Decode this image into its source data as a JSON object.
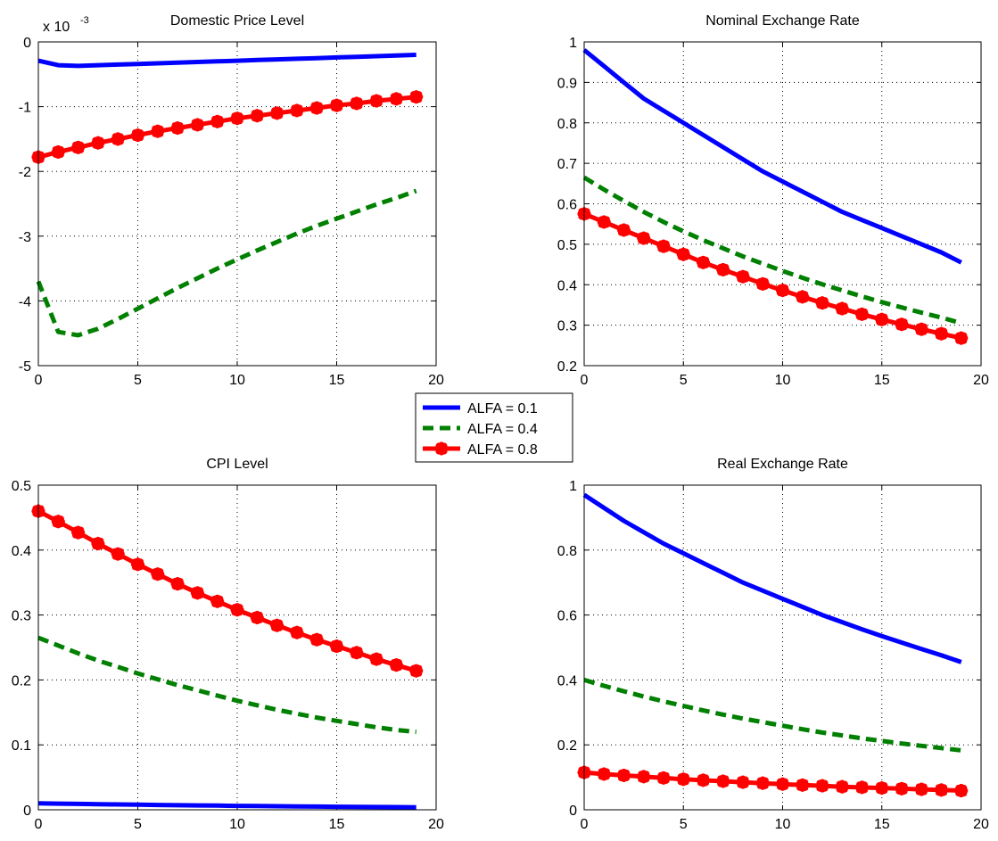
{
  "legend": {
    "placement": "center",
    "entries": [
      {
        "label": "ALFA = 0.1",
        "color": "#0000ff",
        "style": "solid"
      },
      {
        "label": "ALFA = 0.4",
        "color": "#008000",
        "style": "dashed"
      },
      {
        "label": "ALFA = 0.8",
        "color": "#ff0000",
        "style": "solid-marker"
      }
    ]
  },
  "chart_data": [
    {
      "type": "line",
      "title": "Domestic Price Level",
      "xlabel": "",
      "ylabel": "",
      "exponent_label": "x 10",
      "exponent_power": "-3",
      "xlim": [
        0,
        20
      ],
      "ylim": [
        -5,
        0
      ],
      "xticks": [
        0,
        5,
        10,
        15,
        20
      ],
      "yticks": [
        -5,
        -4,
        -3,
        -2,
        -1,
        0
      ],
      "grid": true,
      "x": [
        0,
        1,
        2,
        3,
        4,
        5,
        6,
        7,
        8,
        9,
        10,
        11,
        12,
        13,
        14,
        15,
        16,
        17,
        18,
        19
      ],
      "series": [
        {
          "name": "ALFA = 0.1",
          "values": [
            -0.29,
            -0.36,
            -0.37,
            -0.36,
            -0.35,
            -0.34,
            -0.33,
            -0.32,
            -0.31,
            -0.3,
            -0.29,
            -0.28,
            -0.27,
            -0.26,
            -0.25,
            -0.24,
            -0.23,
            -0.22,
            -0.21,
            -0.2
          ]
        },
        {
          "name": "ALFA = 0.4",
          "values": [
            -3.7,
            -4.48,
            -4.53,
            -4.43,
            -4.28,
            -4.12,
            -3.96,
            -3.8,
            -3.65,
            -3.5,
            -3.36,
            -3.22,
            -3.09,
            -2.96,
            -2.84,
            -2.73,
            -2.62,
            -2.51,
            -2.41,
            -2.3
          ]
        },
        {
          "name": "ALFA = 0.8",
          "values": [
            -1.78,
            -1.7,
            -1.63,
            -1.56,
            -1.5,
            -1.44,
            -1.38,
            -1.33,
            -1.28,
            -1.23,
            -1.18,
            -1.14,
            -1.1,
            -1.06,
            -1.02,
            -0.98,
            -0.95,
            -0.91,
            -0.88,
            -0.85
          ]
        }
      ]
    },
    {
      "type": "line",
      "title": "Nominal Exchange Rate",
      "xlabel": "",
      "ylabel": "",
      "xlim": [
        0,
        20
      ],
      "ylim": [
        0.2,
        1
      ],
      "xticks": [
        0,
        5,
        10,
        15,
        20
      ],
      "yticks": [
        0.2,
        0.3,
        0.4,
        0.5,
        0.6,
        0.7,
        0.8,
        0.9,
        1
      ],
      "grid": true,
      "x": [
        0,
        1,
        2,
        3,
        4,
        5,
        6,
        7,
        8,
        9,
        10,
        11,
        12,
        13,
        14,
        15,
        16,
        17,
        18,
        19
      ],
      "series": [
        {
          "name": "ALFA = 0.1",
          "values": [
            0.98,
            0.94,
            0.9,
            0.86,
            0.83,
            0.8,
            0.77,
            0.74,
            0.71,
            0.68,
            0.655,
            0.63,
            0.605,
            0.58,
            0.56,
            0.54,
            0.52,
            0.5,
            0.48,
            0.455
          ]
        },
        {
          "name": "ALFA = 0.4",
          "values": [
            0.665,
            0.635,
            0.607,
            0.58,
            0.555,
            0.532,
            0.51,
            0.49,
            0.47,
            0.452,
            0.434,
            0.417,
            0.401,
            0.386,
            0.371,
            0.357,
            0.344,
            0.331,
            0.319,
            0.305
          ]
        },
        {
          "name": "ALFA = 0.8",
          "values": [
            0.575,
            0.555,
            0.535,
            0.515,
            0.495,
            0.475,
            0.455,
            0.437,
            0.42,
            0.402,
            0.386,
            0.37,
            0.355,
            0.341,
            0.327,
            0.314,
            0.302,
            0.29,
            0.279,
            0.268
          ]
        }
      ]
    },
    {
      "type": "line",
      "title": "CPI Level",
      "xlabel": "",
      "ylabel": "",
      "xlim": [
        0,
        20
      ],
      "ylim": [
        0,
        0.5
      ],
      "xticks": [
        0,
        5,
        10,
        15,
        20
      ],
      "yticks": [
        0,
        0.1,
        0.2,
        0.3,
        0.4,
        0.5
      ],
      "grid": true,
      "x": [
        0,
        1,
        2,
        3,
        4,
        5,
        6,
        7,
        8,
        9,
        10,
        11,
        12,
        13,
        14,
        15,
        16,
        17,
        18,
        19
      ],
      "series": [
        {
          "name": "ALFA = 0.1",
          "values": [
            0.01,
            0.0095,
            0.009,
            0.0086,
            0.0082,
            0.0078,
            0.0074,
            0.007,
            0.0067,
            0.0064,
            0.0061,
            0.0058,
            0.0055,
            0.0052,
            0.005,
            0.0047,
            0.0045,
            0.0043,
            0.0041,
            0.0039
          ]
        },
        {
          "name": "ALFA = 0.4",
          "values": [
            0.265,
            0.253,
            0.241,
            0.23,
            0.22,
            0.21,
            0.201,
            0.192,
            0.184,
            0.176,
            0.168,
            0.161,
            0.154,
            0.148,
            0.142,
            0.137,
            0.132,
            0.127,
            0.123,
            0.12
          ]
        },
        {
          "name": "ALFA = 0.8",
          "values": [
            0.46,
            0.444,
            0.427,
            0.41,
            0.394,
            0.378,
            0.363,
            0.348,
            0.334,
            0.321,
            0.308,
            0.296,
            0.284,
            0.273,
            0.262,
            0.252,
            0.242,
            0.232,
            0.223,
            0.214
          ]
        }
      ]
    },
    {
      "type": "line",
      "title": "Real Exchange Rate",
      "xlabel": "",
      "ylabel": "",
      "xlim": [
        0,
        20
      ],
      "ylim": [
        0,
        1
      ],
      "xticks": [
        0,
        5,
        10,
        15,
        20
      ],
      "yticks": [
        0,
        0.2,
        0.4,
        0.6,
        0.8,
        1
      ],
      "grid": true,
      "x": [
        0,
        1,
        2,
        3,
        4,
        5,
        6,
        7,
        8,
        9,
        10,
        11,
        12,
        13,
        14,
        15,
        16,
        17,
        18,
        19
      ],
      "series": [
        {
          "name": "ALFA = 0.1",
          "values": [
            0.97,
            0.93,
            0.89,
            0.855,
            0.82,
            0.79,
            0.76,
            0.73,
            0.7,
            0.675,
            0.65,
            0.625,
            0.6,
            0.578,
            0.556,
            0.535,
            0.515,
            0.495,
            0.476,
            0.455
          ]
        },
        {
          "name": "ALFA = 0.4",
          "values": [
            0.4,
            0.382,
            0.365,
            0.349,
            0.334,
            0.32,
            0.306,
            0.293,
            0.281,
            0.27,
            0.259,
            0.248,
            0.238,
            0.229,
            0.22,
            0.212,
            0.204,
            0.197,
            0.19,
            0.183
          ]
        },
        {
          "name": "ALFA = 0.8",
          "values": [
            0.115,
            0.11,
            0.106,
            0.102,
            0.098,
            0.094,
            0.091,
            0.088,
            0.085,
            0.082,
            0.079,
            0.076,
            0.074,
            0.071,
            0.069,
            0.067,
            0.065,
            0.063,
            0.061,
            0.059
          ]
        }
      ]
    }
  ]
}
